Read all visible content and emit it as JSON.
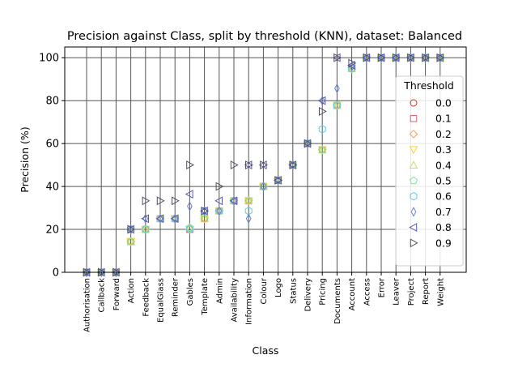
{
  "chart_data": {
    "type": "scatter",
    "title": "Precision against Class, split by threshold (KNN), dataset: Balanced",
    "xlabel": "Class",
    "ylabel": "Precision (%)",
    "ylim": [
      0,
      105
    ],
    "yticks": [
      0,
      20,
      40,
      60,
      80,
      100
    ],
    "grid": true,
    "legend": {
      "title": "Threshold",
      "placement": "right"
    },
    "categories": [
      "Authorisation",
      "Callback",
      "Forward",
      "Action",
      "Feedback",
      "EqualGlass",
      "Reminder",
      "Gables",
      "Template",
      "Admin",
      "Availability",
      "Information",
      "Colour",
      "Logo",
      "Status",
      "Delivery",
      "Pricing",
      "Documents",
      "Account",
      "Access",
      "Error",
      "Leaver",
      "Project",
      "Report",
      "Weight"
    ],
    "series": [
      {
        "name": "0.0",
        "marker": "circle",
        "color": "#c0392b",
        "values": [
          0,
          0,
          0,
          14.3,
          20,
          25,
          25,
          20,
          25,
          28.6,
          33.3,
          33.3,
          40,
          42.9,
          50,
          60,
          57.1,
          77.8,
          95,
          100,
          100,
          100,
          100,
          100,
          100
        ]
      },
      {
        "name": "0.1",
        "marker": "square",
        "color": "#e05a6e",
        "values": [
          0,
          0,
          0,
          14.3,
          20,
          25,
          25,
          20,
          25,
          28.6,
          33.3,
          33.3,
          40,
          42.9,
          50,
          60,
          57.1,
          77.8,
          95,
          100,
          100,
          100,
          100,
          100,
          100
        ]
      },
      {
        "name": "0.2",
        "marker": "diamond",
        "color": "#f0a060",
        "values": [
          0,
          0,
          0,
          14.3,
          20,
          25,
          25,
          20,
          25,
          28.6,
          33.3,
          33.3,
          40,
          42.9,
          50,
          60,
          57.1,
          77.8,
          94.7,
          100,
          100,
          100,
          100,
          100,
          100
        ]
      },
      {
        "name": "0.3",
        "marker": "tri-down",
        "color": "#f2d640",
        "values": [
          0,
          0,
          0,
          14.3,
          20,
          25,
          25,
          20,
          25,
          28.6,
          33.3,
          33.3,
          40,
          42.9,
          50,
          60,
          57.1,
          77.8,
          95,
          100,
          100,
          100,
          100,
          100,
          100
        ]
      },
      {
        "name": "0.4",
        "marker": "tri-up",
        "color": "#c8e060",
        "values": [
          0,
          0,
          0,
          14.3,
          20,
          25,
          25,
          20.8,
          25,
          28.6,
          33.3,
          33.3,
          40,
          42.9,
          50,
          60,
          57.1,
          77.8,
          95,
          100,
          100,
          100,
          100,
          100,
          100
        ]
      },
      {
        "name": "0.5",
        "marker": "pentagon",
        "color": "#80e0a0",
        "values": [
          0,
          0,
          0,
          14.3,
          20,
          25,
          25,
          20.8,
          25,
          28.6,
          33.3,
          33.3,
          40,
          42.9,
          50,
          60,
          57.1,
          77.8,
          95,
          100,
          100,
          100,
          100,
          100,
          100
        ]
      },
      {
        "name": "0.6",
        "marker": "hexagon",
        "color": "#60c8e8",
        "values": [
          0,
          0,
          0,
          20,
          20,
          25,
          25,
          20,
          28.6,
          28.6,
          33.3,
          28.6,
          40,
          42.9,
          50,
          60,
          66.7,
          77.8,
          95,
          100,
          100,
          100,
          100,
          100,
          100
        ]
      },
      {
        "name": "0.7",
        "marker": "thin-diamond",
        "color": "#6a80d0",
        "values": [
          0,
          0,
          0,
          20,
          25,
          25,
          25,
          30.8,
          28.6,
          28.6,
          33.3,
          25,
          40,
          42.9,
          50,
          60,
          80,
          85.7,
          96,
          100,
          100,
          100,
          100,
          100,
          100
        ]
      },
      {
        "name": "0.8",
        "marker": "tri-left",
        "color": "#5a5ab0",
        "values": [
          0,
          0,
          0,
          20,
          25,
          25,
          25,
          36.4,
          28.6,
          33.3,
          33.3,
          50,
          50,
          42.9,
          50,
          60,
          80,
          100,
          96.5,
          100,
          100,
          100,
          100,
          100,
          100
        ]
      },
      {
        "name": "0.9",
        "marker": "tri-right",
        "color": "#505060",
        "values": [
          0,
          0,
          0,
          20,
          33.3,
          33.3,
          33.3,
          50,
          28.6,
          40,
          50,
          50,
          50,
          42.9,
          50,
          60,
          75,
          100,
          97.5,
          100,
          100,
          100,
          100,
          100,
          100
        ]
      }
    ]
  }
}
